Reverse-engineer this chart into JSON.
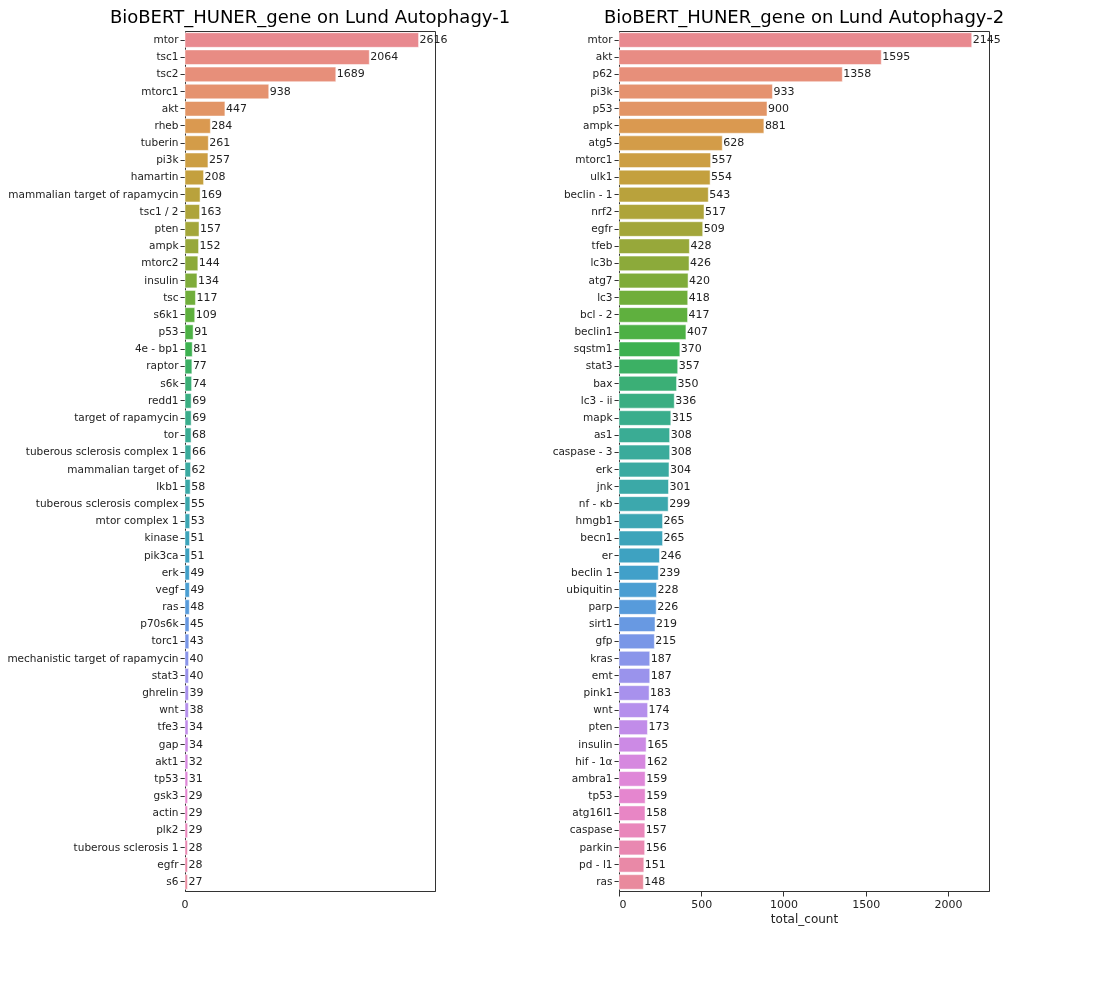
{
  "chart_data": [
    {
      "type": "bar",
      "orientation": "horizontal",
      "title": "BioBERT_HUNER_gene on Lund Autophagy-1",
      "data_labels": true,
      "grid": false,
      "annotations": [
        "0"
      ],
      "categories": [
        "mtor",
        "tsc1",
        "tsc2",
        "mtorc1",
        "akt",
        "rheb",
        "tuberin",
        "pi3k",
        "hamartin",
        "mammalian target of rapamycin",
        "tsc1 / 2",
        "pten",
        "ampk",
        "mtorc2",
        "insulin",
        "tsc",
        "s6k1",
        "p53",
        "4e - bp1",
        "raptor",
        "s6k",
        "redd1",
        "target of rapamycin",
        "tor",
        "tuberous sclerosis complex 1",
        "mammalian target of",
        "lkb1",
        "tuberous sclerosis complex",
        "mtor complex 1",
        "kinase",
        "pik3ca",
        "erk",
        "vegf",
        "ras",
        "p70s6k",
        "torc1",
        "mechanistic target of rapamycin",
        "stat3",
        "ghrelin",
        "wnt",
        "tfe3",
        "gap",
        "akt1",
        "tp53",
        "gsk3",
        "actin",
        "plk2",
        "tuberous sclerosis 1",
        "egfr",
        "s6"
      ],
      "values": [
        2616,
        2064,
        1689,
        938,
        447,
        284,
        261,
        257,
        208,
        169,
        163,
        157,
        152,
        144,
        134,
        117,
        109,
        91,
        81,
        77,
        74,
        69,
        69,
        68,
        66,
        62,
        58,
        55,
        53,
        51,
        51,
        49,
        49,
        48,
        45,
        43,
        40,
        40,
        39,
        38,
        34,
        34,
        32,
        31,
        29,
        29,
        29,
        28,
        28,
        27
      ],
      "colors": [
        "#e8898f",
        "#e88c84",
        "#e78f7a",
        "#e5926f",
        "#e29566",
        "#da9950",
        "#d39c48",
        "#cc9e43",
        "#c4a03e",
        "#b9a23c",
        "#aea43a",
        "#a3a63a",
        "#97a83a",
        "#8caa3a",
        "#7fac3a",
        "#70ae3b",
        "#5fb03e",
        "#4db145",
        "#3db150",
        "#3cb064",
        "#3baf76",
        "#3aae82",
        "#3aad8c",
        "#3aac94",
        "#3aab9b",
        "#3baaa1",
        "#3ba9a7",
        "#3ca8ad",
        "#3ca6b3",
        "#3da4ba",
        "#3ea2c1",
        "#41a0c9",
        "#4a9ed2",
        "#579bdb",
        "#6899e2",
        "#7997e7",
        "#8a95ea",
        "#9a93ec",
        "#a891ed",
        "#b58fec",
        "#c18ce9",
        "#cc8ae5",
        "#d688df",
        "#df87d8",
        "#e586cf",
        "#e886c5",
        "#e987bb",
        "#e988b1",
        "#e989a7",
        "#e98a9d"
      ]
    },
    {
      "type": "bar",
      "orientation": "horizontal",
      "title": "BioBERT_HUNER_gene on Lund Autophagy-2",
      "xlabel": "total_count",
      "data_labels": true,
      "grid": false,
      "xlim": [
        0,
        2250
      ],
      "xticks": [
        0,
        500,
        1000,
        1500,
        2000
      ],
      "categories": [
        "mtor",
        "akt",
        "p62",
        "pi3k",
        "p53",
        "ampk",
        "atg5",
        "mtorc1",
        "ulk1",
        "beclin - 1",
        "nrf2",
        "egfr",
        "tfeb",
        "lc3b",
        "atg7",
        "lc3",
        "bcl - 2",
        "beclin1",
        "sqstm1",
        "stat3",
        "bax",
        "lc3 - ii",
        "mapk",
        "as1",
        "caspase - 3",
        "erk",
        "jnk",
        "nf - κb",
        "hmgb1",
        "becn1",
        "er",
        "beclin 1",
        "ubiquitin",
        "parp",
        "sirt1",
        "gfp",
        "kras",
        "emt",
        "pink1",
        "wnt",
        "pten",
        "insulin",
        "hif - 1α",
        "ambra1",
        "tp53",
        "atg16l1",
        "caspase",
        "parkin",
        "pd - l1",
        "ras"
      ],
      "values": [
        2145,
        1595,
        1358,
        933,
        900,
        881,
        628,
        557,
        554,
        543,
        517,
        509,
        428,
        426,
        420,
        418,
        417,
        407,
        370,
        357,
        350,
        336,
        315,
        308,
        308,
        304,
        301,
        299,
        265,
        265,
        246,
        239,
        228,
        226,
        219,
        215,
        187,
        187,
        183,
        174,
        173,
        165,
        162,
        159,
        159,
        158,
        157,
        156,
        151,
        148
      ],
      "colors": [
        "#e8898f",
        "#e88c84",
        "#e78f7a",
        "#e5926f",
        "#e29566",
        "#da9950",
        "#d39c48",
        "#cc9e43",
        "#c4a03e",
        "#b9a23c",
        "#aea43a",
        "#a3a63a",
        "#97a83a",
        "#8caa3a",
        "#7fac3a",
        "#70ae3b",
        "#5fb03e",
        "#4db145",
        "#3db150",
        "#3cb064",
        "#3baf76",
        "#3aae82",
        "#3aad8c",
        "#3aac94",
        "#3aab9b",
        "#3baaa1",
        "#3ba9a7",
        "#3ca8ad",
        "#3ca6b3",
        "#3da4ba",
        "#3ea2c1",
        "#41a0c9",
        "#4a9ed2",
        "#579bdb",
        "#6899e2",
        "#7997e7",
        "#8a95ea",
        "#9a93ec",
        "#a891ed",
        "#b58fec",
        "#c18ce9",
        "#cc8ae5",
        "#d688df",
        "#df87d8",
        "#e586cf",
        "#e886c5",
        "#e987bb",
        "#e988b1",
        "#e989a7",
        "#e98a9d"
      ]
    }
  ]
}
